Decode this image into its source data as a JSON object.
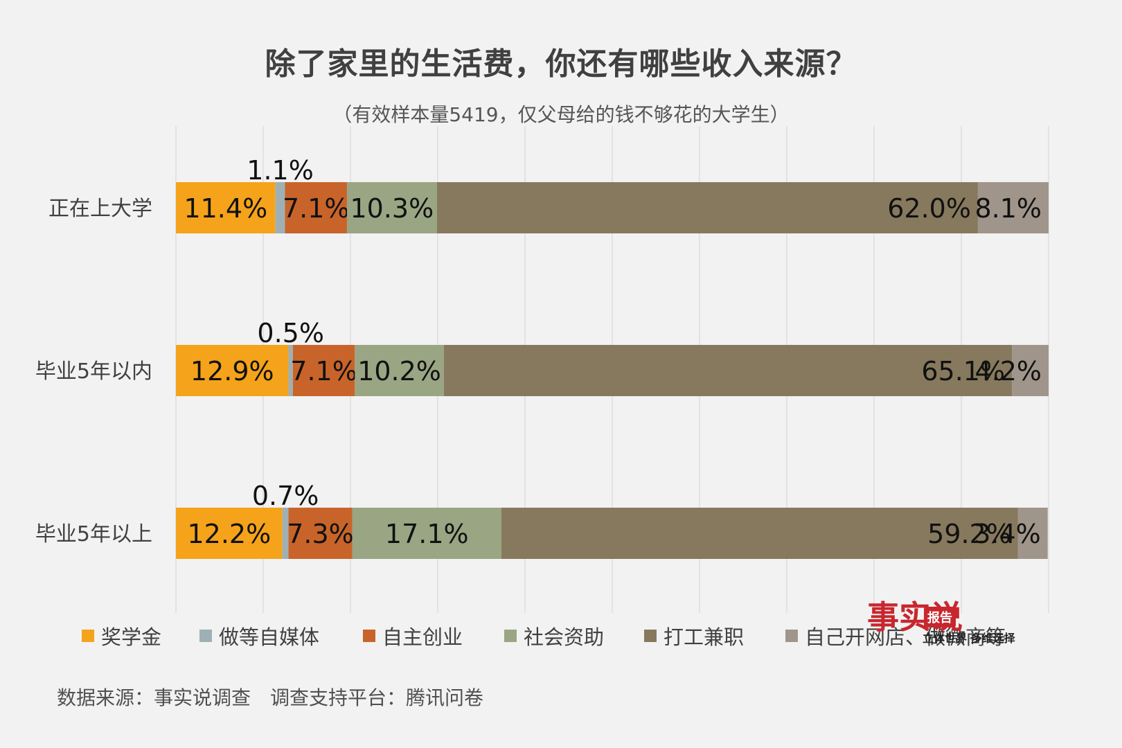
{
  "chart_data": {
    "type": "bar",
    "orientation": "horizontal",
    "stacked": true,
    "percent_stacked": true,
    "title": "除了家里的生活费，你还有哪些收入来源？",
    "subtitle": "（有效样本量5419，仅父母给的钱不够花的大学生）",
    "categories": [
      "正在上大学",
      "毕业5年以内",
      "毕业5年以上"
    ],
    "series": [
      {
        "name": "奖学金",
        "color": "#f5a31a",
        "values": [
          11.4,
          12.9,
          12.2
        ],
        "labels": [
          "11.4%",
          "12.9%",
          "12.2%"
        ]
      },
      {
        "name": "做等自媒体",
        "color": "#9fb0b5",
        "values": [
          1.1,
          0.5,
          0.7
        ],
        "labels": [
          "1.1%",
          "0.5%",
          "0.7%"
        ]
      },
      {
        "name": "自主创业",
        "color": "#c8642a",
        "values": [
          7.1,
          7.1,
          7.3
        ],
        "labels": [
          "7.1%",
          "7.1%",
          "7.3%"
        ]
      },
      {
        "name": "社会资助",
        "color": "#9aa584",
        "values": [
          10.3,
          10.2,
          17.1
        ],
        "labels": [
          "10.3%",
          "10.2%",
          "17.1%"
        ]
      },
      {
        "name": "打工兼职",
        "color": "#87795d",
        "values": [
          62.0,
          65.1,
          59.2
        ],
        "labels": [
          "62.0%",
          "65.1%",
          "59.2%"
        ]
      },
      {
        "name": "自己开网店、做微商等",
        "color": "#a0958a",
        "values": [
          8.1,
          4.2,
          3.4
        ],
        "labels": [
          "8.1%",
          "4.2%",
          "3.4%"
        ]
      }
    ],
    "xlim": [
      0,
      100
    ],
    "grid": true,
    "legend_position": "bottom"
  },
  "source": "数据来源：事实说调查　调查支持平台：腾讯问卷",
  "logo": {
    "main": "事实说",
    "badge": "报告",
    "tagline": "立体世界 多维选择"
  }
}
